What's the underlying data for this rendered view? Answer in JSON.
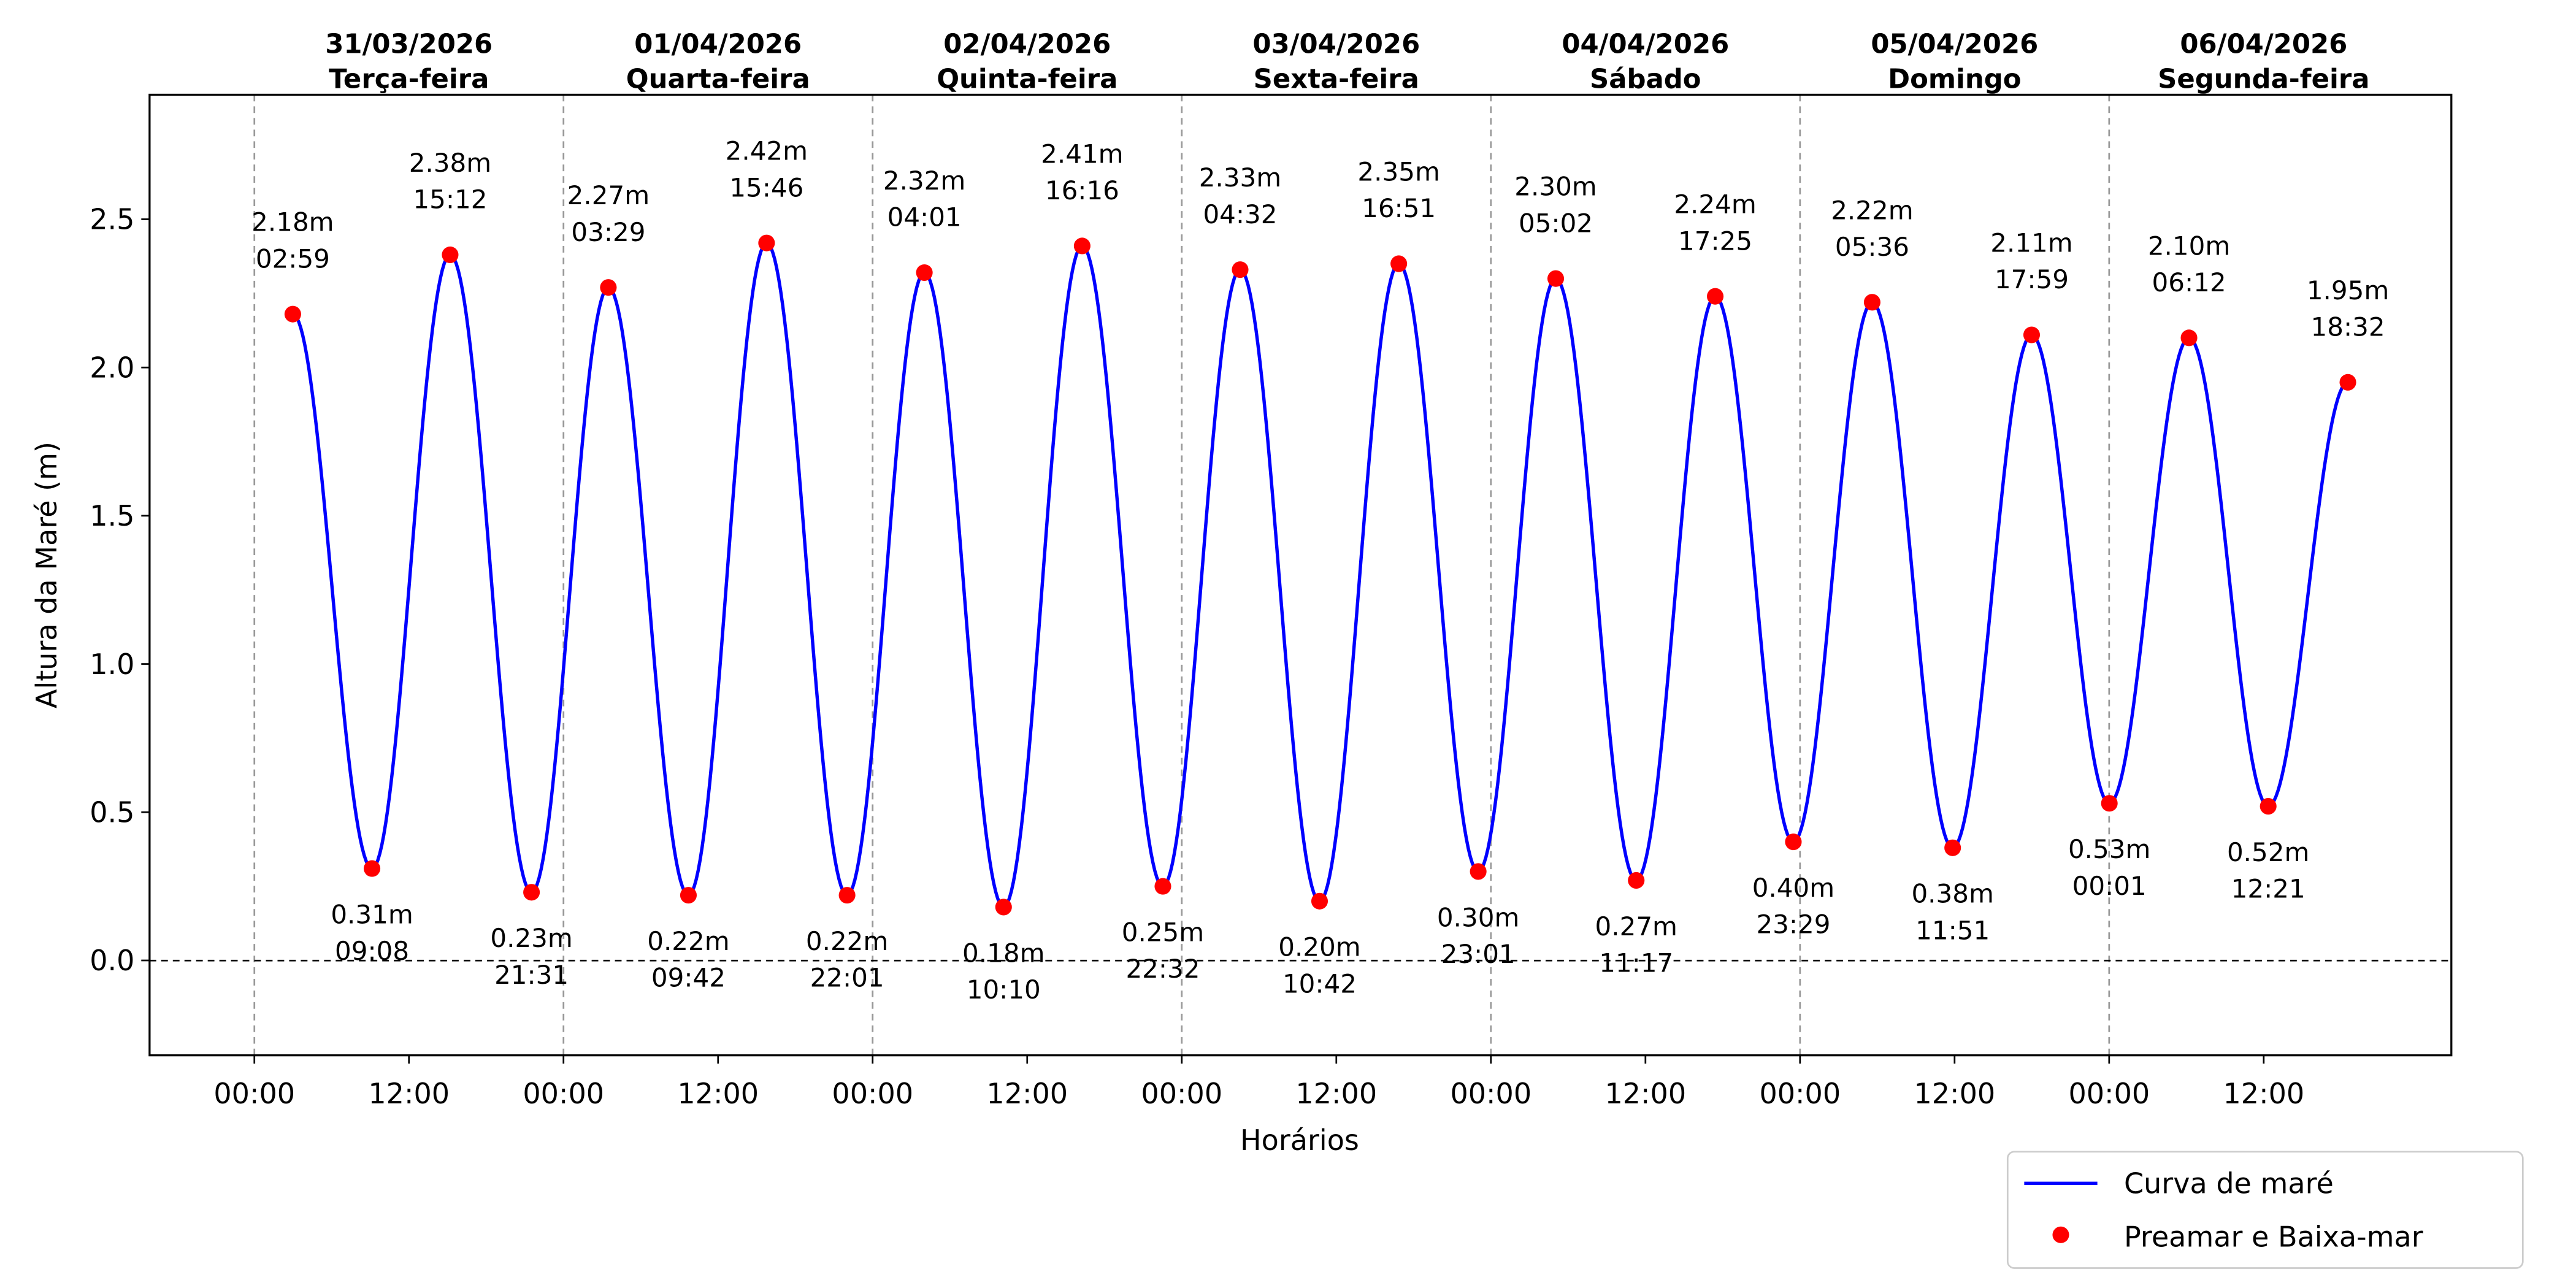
{
  "chart_data": {
    "type": "line",
    "xlabel": "Horários",
    "ylabel": "Altura da Maré (m)",
    "ylim": [
      -0.32,
      2.92
    ],
    "xlim_days": [
      -0.339,
      7.107
    ],
    "y_ticks": [
      "0.0",
      "0.5",
      "1.0",
      "1.5",
      "2.0",
      "2.5"
    ],
    "x_tick_labels": [
      "00:00",
      "12:00",
      "00:00",
      "12:00",
      "00:00",
      "12:00",
      "00:00",
      "12:00",
      "00:00",
      "12:00",
      "00:00",
      "12:00",
      "00:00",
      "12:00"
    ],
    "grid": "vertical dashed lines at midnight",
    "zero_line": true,
    "legend": {
      "placement": "bottom-right outside",
      "entries": [
        "Curva de maré",
        "Preamar e Baixa-mar"
      ]
    },
    "colors": {
      "curve": "#0000ff",
      "points": "#ff0000",
      "grid": "#999999"
    },
    "days": [
      {
        "date": "31/03/2026",
        "weekday": "Terça-feira"
      },
      {
        "date": "01/04/2026",
        "weekday": "Quarta-feira"
      },
      {
        "date": "02/04/2026",
        "weekday": "Quinta-feira"
      },
      {
        "date": "03/04/2026",
        "weekday": "Sexta-feira"
      },
      {
        "date": "04/04/2026",
        "weekday": "Sábado"
      },
      {
        "date": "05/04/2026",
        "weekday": "Domingo"
      },
      {
        "date": "06/04/2026",
        "weekday": "Segunda-feira"
      }
    ],
    "series": [
      {
        "name": "Curva de maré",
        "kind": "line"
      },
      {
        "name": "Preamar e Baixa-mar",
        "kind": "scatter",
        "points": [
          {
            "date": "31/03/2026",
            "time": "02:59",
            "height": 2.18,
            "type": "high"
          },
          {
            "date": "31/03/2026",
            "time": "09:08",
            "height": 0.31,
            "type": "low"
          },
          {
            "date": "31/03/2026",
            "time": "15:12",
            "height": 2.38,
            "type": "high"
          },
          {
            "date": "31/03/2026",
            "time": "21:31",
            "height": 0.23,
            "type": "low"
          },
          {
            "date": "01/04/2026",
            "time": "03:29",
            "height": 2.27,
            "type": "high"
          },
          {
            "date": "01/04/2026",
            "time": "09:42",
            "height": 0.22,
            "type": "low"
          },
          {
            "date": "01/04/2026",
            "time": "15:46",
            "height": 2.42,
            "type": "high"
          },
          {
            "date": "01/04/2026",
            "time": "22:01",
            "height": 0.22,
            "type": "low"
          },
          {
            "date": "02/04/2026",
            "time": "04:01",
            "height": 2.32,
            "type": "high"
          },
          {
            "date": "02/04/2026",
            "time": "10:10",
            "height": 0.18,
            "type": "low"
          },
          {
            "date": "02/04/2026",
            "time": "16:16",
            "height": 2.41,
            "type": "high"
          },
          {
            "date": "02/04/2026",
            "time": "22:32",
            "height": 0.25,
            "type": "low"
          },
          {
            "date": "03/04/2026",
            "time": "04:32",
            "height": 2.33,
            "type": "high"
          },
          {
            "date": "03/04/2026",
            "time": "10:42",
            "height": 0.2,
            "type": "low"
          },
          {
            "date": "03/04/2026",
            "time": "16:51",
            "height": 2.35,
            "type": "high"
          },
          {
            "date": "03/04/2026",
            "time": "23:01",
            "height": 0.3,
            "type": "low"
          },
          {
            "date": "04/04/2026",
            "time": "05:02",
            "height": 2.3,
            "type": "high"
          },
          {
            "date": "04/04/2026",
            "time": "11:17",
            "height": 0.27,
            "type": "low"
          },
          {
            "date": "04/04/2026",
            "time": "17:25",
            "height": 2.24,
            "type": "high"
          },
          {
            "date": "04/04/2026",
            "time": "23:29",
            "height": 0.4,
            "type": "low"
          },
          {
            "date": "05/04/2026",
            "time": "05:36",
            "height": 2.22,
            "type": "high"
          },
          {
            "date": "05/04/2026",
            "time": "11:51",
            "height": 0.38,
            "type": "low"
          },
          {
            "date": "05/04/2026",
            "time": "17:59",
            "height": 2.11,
            "type": "high"
          },
          {
            "date": "06/04/2026",
            "time": "00:01",
            "height": 0.53,
            "type": "low"
          },
          {
            "date": "06/04/2026",
            "time": "06:12",
            "height": 2.1,
            "type": "high"
          },
          {
            "date": "06/04/2026",
            "time": "12:21",
            "height": 0.52,
            "type": "low"
          },
          {
            "date": "06/04/2026",
            "time": "18:32",
            "height": 1.95,
            "type": "high"
          }
        ]
      }
    ]
  }
}
